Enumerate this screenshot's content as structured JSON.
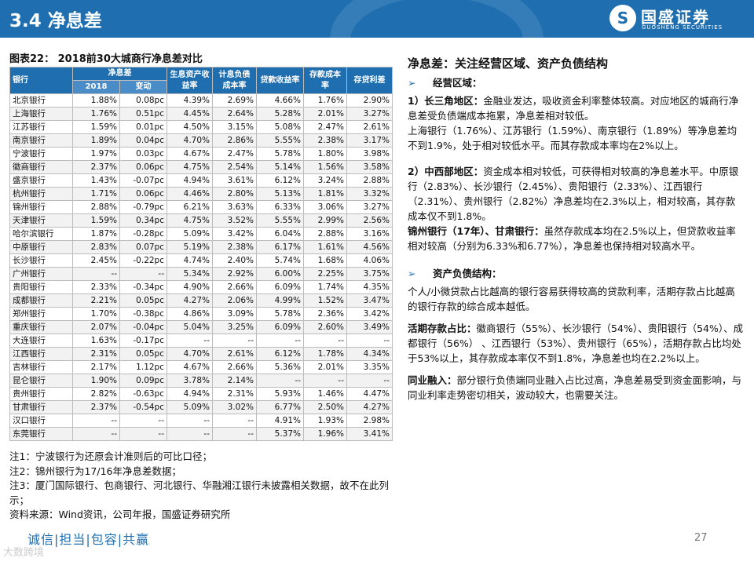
{
  "header": {
    "title": "3.4 净息差",
    "logo_cn": "国盛证券",
    "logo_en": "GUOSHENG SECURITIES",
    "logo_mark": "S"
  },
  "chart_title": "图表22： 2018前30大城商行净息差对比",
  "table": {
    "h_bank": "银行",
    "h_nim": "净息差",
    "h_nim_2018": "2018",
    "h_nim_change": "变动",
    "h_asset_yield": "生息资产收益率",
    "h_liab_cost": "计息负债成本率",
    "h_loan_yield": "贷款收益率",
    "h_deposit_cost": "存款成本率",
    "h_spread": "存贷利差",
    "rows": [
      [
        "北京银行",
        "1.88%",
        "0.08pc",
        "4.39%",
        "2.69%",
        "4.66%",
        "1.76%",
        "2.90%"
      ],
      [
        "上海银行",
        "1.76%",
        "0.51pc",
        "4.45%",
        "2.64%",
        "5.28%",
        "2.01%",
        "3.27%"
      ],
      [
        "江苏银行",
        "1.59%",
        "0.01pc",
        "4.50%",
        "3.15%",
        "5.08%",
        "2.47%",
        "2.61%"
      ],
      [
        "南京银行",
        "1.89%",
        "0.04pc",
        "4.70%",
        "2.86%",
        "5.55%",
        "2.38%",
        "3.17%"
      ],
      [
        "宁波银行",
        "1.97%",
        "0.03pc",
        "4.67%",
        "2.47%",
        "5.78%",
        "1.80%",
        "3.98%"
      ],
      [
        "徽商银行",
        "2.37%",
        "0.06pc",
        "4.75%",
        "2.54%",
        "5.14%",
        "1.56%",
        "3.58%"
      ],
      [
        "盛京银行",
        "1.43%",
        "-0.07pc",
        "4.94%",
        "3.61%",
        "6.12%",
        "3.24%",
        "2.88%"
      ],
      [
        "杭州银行",
        "1.71%",
        "0.06pc",
        "4.46%",
        "2.80%",
        "5.13%",
        "1.81%",
        "3.32%"
      ],
      [
        "锦州银行",
        "2.88%",
        "-0.79pc",
        "6.21%",
        "3.63%",
        "6.33%",
        "3.06%",
        "3.27%"
      ],
      [
        "天津银行",
        "1.59%",
        "0.34pc",
        "4.75%",
        "3.52%",
        "5.55%",
        "2.99%",
        "2.56%"
      ],
      [
        "哈尔滨银行",
        "1.87%",
        "-0.28pc",
        "5.09%",
        "3.42%",
        "6.04%",
        "2.88%",
        "3.16%"
      ],
      [
        "中原银行",
        "2.83%",
        "0.07pc",
        "5.19%",
        "2.38%",
        "6.17%",
        "1.61%",
        "4.56%"
      ],
      [
        "长沙银行",
        "2.45%",
        "-0.22pc",
        "4.74%",
        "2.40%",
        "5.74%",
        "1.68%",
        "4.06%"
      ],
      [
        "广州银行",
        "--",
        "--",
        "5.34%",
        "2.92%",
        "6.00%",
        "2.25%",
        "3.75%"
      ],
      [
        "贵阳银行",
        "2.33%",
        "-0.34pc",
        "4.90%",
        "2.66%",
        "6.09%",
        "1.74%",
        "4.35%"
      ],
      [
        "成都银行",
        "2.21%",
        "0.05pc",
        "4.27%",
        "2.06%",
        "4.99%",
        "1.52%",
        "3.47%"
      ],
      [
        "郑州银行",
        "1.70%",
        "-0.38pc",
        "4.86%",
        "3.09%",
        "5.78%",
        "2.36%",
        "3.42%"
      ],
      [
        "重庆银行",
        "2.07%",
        "-0.04pc",
        "5.04%",
        "3.25%",
        "6.09%",
        "2.60%",
        "3.49%"
      ],
      [
        "大连银行",
        "1.63%",
        "-0.17pc",
        "--",
        "--",
        "--",
        "--",
        "--"
      ],
      [
        "江西银行",
        "2.31%",
        "0.05pc",
        "4.70%",
        "2.61%",
        "6.12%",
        "1.78%",
        "4.34%"
      ],
      [
        "吉林银行",
        "2.17%",
        "1.12pc",
        "4.67%",
        "2.66%",
        "5.36%",
        "2.01%",
        "3.35%"
      ],
      [
        "昆仑银行",
        "1.90%",
        "0.09pc",
        "3.78%",
        "2.14%",
        "--",
        "--",
        "--"
      ],
      [
        "贵州银行",
        "2.82%",
        "-0.63pc",
        "4.94%",
        "2.31%",
        "5.93%",
        "1.46%",
        "4.47%"
      ],
      [
        "甘肃银行",
        "2.37%",
        "-0.54pc",
        "5.09%",
        "3.02%",
        "6.77%",
        "2.50%",
        "4.27%"
      ],
      [
        "汉口银行",
        "--",
        "--",
        "--",
        "--",
        "4.91%",
        "1.93%",
        "2.98%"
      ],
      [
        "东莞银行",
        "--",
        "--",
        "--",
        "--",
        "5.37%",
        "1.96%",
        "3.41%"
      ]
    ]
  },
  "notes": {
    "n1": "注1：宁波银行为还原会计准则后的可比口径；",
    "n2": "注2：锦州银行为17/16年净息差数据；",
    "n3": "注3：厦门国际银行、包商银行、河北银行、华融湘江银行未披露相关数据，故不在此列示；",
    "source": "资料来源：Wind资讯，公司年报，国盛证券研究所"
  },
  "footer": {
    "slogan": "诚信|担当|包容|共赢",
    "watermark": "大数跨境",
    "page": "27"
  },
  "right": {
    "heading": "净息差：关注经营区域、资产负债结构",
    "bullet_arrow": "➢",
    "bullet1": "经营区域：",
    "p1_label": "1）长三角地区：",
    "p1_text": "金融业发达，吸收资金利率整体较高。对应地区的城商行净息差受负债端成本拖累，净息差相对较低。",
    "p2": "上海银行（1.76%）、江苏银行（1.59%）、南京银行（1.89%）等净息差均不到1.9%，处于相对较低水平。而其存款成本率均在2%以上。",
    "p3_label": "2）中西部地区：",
    "p3_text": "资金成本相对较低，可获得相对较高的净息差水平。中原银行（2.83%）、长沙银行（2.45%）、贵阳银行（2.33%）、江西银行（2.31%）、贵州银行（2.82%）净息差均在2.3%以上，相对较高，其存款成本仅不到1.8%。",
    "p4_label": "锦州银行（17年）、甘肃银行：",
    "p4_text": "虽然存款成本均在2.5%以上，但贷款收益率相对较高（分别为6.33%和6.77%），净息差也保持相对较高水平。",
    "bullet2": "资产负债结构：",
    "p5": "个人/小微贷款占比越高的银行容易获得较高的贷款利率，活期存款占比越高的银行存款的综合成本越低。",
    "p6_label": "活期存款占比：",
    "p6_text": "徽商银行（55%）、长沙银行（54%）、贵阳银行（54%）、成都银行（56%） 、江西银行（53%）、贵州银行（65%），活期存款占比均处于53%以上，其存款成本率仅不到1.8%，净息差也均在2.2%以上。",
    "p7_label": "同业融入：",
    "p7_text": "部分银行负债端同业融入占比过高，净息差易受到资金面影响，与同业利率走势密切相关，波动较大，也需要关注。"
  }
}
